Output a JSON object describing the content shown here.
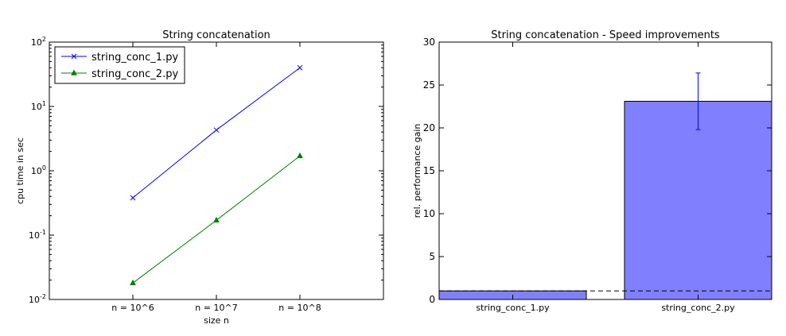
{
  "chart_data": [
    {
      "type": "line",
      "title": "String concatenation",
      "xlabel": "size n",
      "ylabel": "cpu time in sec",
      "y_scale": "log",
      "ylim": [
        0.01,
        100
      ],
      "y_ticks": [
        {
          "value": 0.01,
          "base": "10",
          "exp": "-2"
        },
        {
          "value": 0.1,
          "base": "10",
          "exp": "-1"
        },
        {
          "value": 1,
          "base": "10",
          "exp": "0"
        },
        {
          "value": 10,
          "base": "10",
          "exp": "1"
        },
        {
          "value": 100,
          "base": "10",
          "exp": "2"
        }
      ],
      "categories": [
        "n = 10^6",
        "n = 10^7",
        "n = 10^8"
      ],
      "legend_position": "top-left",
      "grid": false,
      "series": [
        {
          "name": "string_conc_1.py",
          "values": [
            0.38,
            4.3,
            40.0
          ],
          "color": "#0000ff",
          "marker": "x"
        },
        {
          "name": "string_conc_2.py",
          "values": [
            0.018,
            0.17,
            1.7
          ],
          "color": "#008000",
          "marker": "triangle"
        }
      ]
    },
    {
      "type": "bar",
      "title": "String concatenation - Speed improvements",
      "xlabel": "",
      "ylabel": "rel. performance gain",
      "ylim": [
        0,
        30
      ],
      "y_ticks": [
        0,
        5,
        10,
        15,
        20,
        25,
        30
      ],
      "categories": [
        "string_conc_1.py",
        "string_conc_2.py"
      ],
      "values": [
        1.0,
        23.1
      ],
      "error": [
        0,
        3.3
      ],
      "reference_line": 1.0,
      "bar_color": "#8080ff",
      "error_color": "#0000ff",
      "grid": false
    }
  ]
}
